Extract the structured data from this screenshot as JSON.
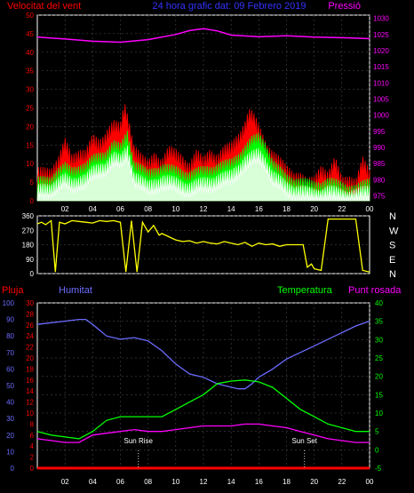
{
  "colors": {
    "background": "#000000",
    "wind_avg": "#ffffff",
    "wind_mid": "#00ff00",
    "wind_gust": "#ff0000",
    "pressure": "#ff00ff",
    "direction": "#ffff00",
    "rain": "#ff0000",
    "humidity": "#6b6bff",
    "temperature": "#00ff00",
    "dewpoint": "#ff00ff",
    "grid": "#555555",
    "axis": "#ffffff"
  },
  "chart_data": [
    {
      "type": "line",
      "title": "24 hora grafic dat: 09 Febrero 2019",
      "left_label": "Velocitat del vent",
      "right_label": "Pressió",
      "x_ticks": [
        "02",
        "04",
        "06",
        "08",
        "10",
        "12",
        "14",
        "16",
        "18",
        "20",
        "22",
        "00"
      ],
      "x_range": [
        0,
        24
      ],
      "y_left_ticks": [
        0,
        5,
        10,
        15,
        20,
        25,
        30,
        35,
        40,
        45,
        50
      ],
      "y_left_range": [
        0,
        50
      ],
      "y_right_ticks": [
        975,
        980,
        985,
        990,
        995,
        1000,
        1005,
        1010,
        1015,
        1020,
        1025,
        1030
      ],
      "y_right_range": [
        973.5,
        1031
      ],
      "pressure": {
        "x": [
          0,
          2,
          4,
          6,
          8,
          10,
          11,
          12,
          13,
          14,
          16,
          18,
          20,
          22,
          24
        ],
        "y": [
          1024.2,
          1023.6,
          1022.9,
          1022.6,
          1023.4,
          1025.0,
          1026.2,
          1026.8,
          1026.1,
          1024.8,
          1024.3,
          1024.6,
          1024.2,
          1024.0,
          1023.7
        ]
      },
      "wind_gust": {
        "x": [
          0,
          1,
          1.5,
          2,
          2.5,
          3,
          3.5,
          4,
          4.5,
          5,
          5.5,
          6,
          6.3,
          6.6,
          7,
          7.5,
          8,
          8.5,
          9,
          9.5,
          10,
          10.5,
          11,
          11.5,
          12,
          12.5,
          13,
          13.5,
          14,
          14.5,
          15,
          15.3,
          15.6,
          16,
          16.5,
          17,
          17.5,
          18,
          18.5,
          19,
          19.5,
          20,
          20.5,
          21,
          21.5,
          22,
          22.5,
          23,
          23.5,
          24
        ],
        "y": [
          6,
          7,
          9,
          14,
          10,
          12,
          11,
          15,
          14,
          17,
          19,
          18,
          24,
          20,
          13,
          10,
          8,
          11,
          9,
          12,
          11,
          10,
          8,
          11,
          9,
          12,
          10,
          12,
          13,
          16,
          19,
          22,
          21,
          18,
          14,
          11,
          9,
          7,
          6,
          5,
          3,
          4,
          8,
          5,
          9,
          4,
          5,
          3,
          9,
          6
        ]
      },
      "wind_mid": {
        "x": [
          0,
          1,
          2,
          2.5,
          3,
          3.5,
          4,
          4.5,
          5,
          5.5,
          6,
          6.5,
          7,
          8,
          9,
          10,
          11,
          12,
          13,
          14,
          14.5,
          15,
          15.5,
          16,
          16.5,
          17,
          18,
          19,
          20,
          21,
          22,
          23,
          24
        ],
        "y": [
          4,
          5,
          8,
          7,
          8,
          8,
          10,
          11,
          12,
          14,
          13,
          17,
          9,
          6,
          8,
          7,
          6,
          7,
          8,
          9,
          11,
          13,
          15,
          16,
          14,
          9,
          5,
          4,
          3,
          4,
          3,
          2,
          4
        ]
      },
      "wind_avg": {
        "x": [
          0,
          1,
          2,
          2.5,
          3,
          3.5,
          4,
          4.5,
          5,
          5.5,
          6,
          6.5,
          7,
          8,
          9,
          10,
          11,
          12,
          13,
          14,
          14.5,
          15,
          15.5,
          16,
          16.5,
          17,
          18,
          19,
          20,
          21,
          22,
          23,
          24
        ],
        "y": [
          2,
          3,
          5,
          4,
          5,
          5,
          7,
          8,
          9,
          11,
          10,
          13,
          6,
          3,
          5,
          4,
          3,
          4,
          5,
          6,
          8,
          10,
          11,
          12,
          10,
          6,
          3,
          2,
          1,
          2,
          1,
          1,
          2
        ]
      }
    },
    {
      "type": "line",
      "y_ticks": [
        0,
        90,
        180,
        270,
        360
      ],
      "y_range": [
        0,
        360
      ],
      "right_labels": [
        "N",
        "W",
        "S",
        "E",
        "N"
      ],
      "x_range": [
        0,
        24
      ],
      "direction": {
        "x": [
          0,
          0.3,
          0.6,
          1,
          1.3,
          1.6,
          2,
          2.5,
          3,
          3.5,
          4,
          4.5,
          5,
          5.5,
          6,
          6.4,
          6.8,
          7.2,
          7.6,
          8,
          8.4,
          8.8,
          9,
          9.5,
          10,
          10.5,
          11,
          11.5,
          12,
          12.5,
          13,
          13.5,
          14,
          14.5,
          15,
          15.5,
          16,
          16.5,
          17,
          17.5,
          18,
          18.5,
          19,
          19.2,
          19.5,
          19.8,
          20,
          20.5,
          21,
          21.5,
          22,
          22.5,
          23,
          23.5,
          24
        ],
        "y": [
          310,
          320,
          305,
          330,
          10,
          320,
          310,
          330,
          325,
          320,
          315,
          330,
          325,
          330,
          320,
          10,
          330,
          10,
          320,
          260,
          300,
          240,
          250,
          230,
          210,
          200,
          205,
          190,
          200,
          190,
          185,
          200,
          190,
          180,
          195,
          170,
          190,
          180,
          185,
          170,
          180,
          180,
          180,
          180,
          40,
          60,
          30,
          20,
          340,
          340,
          340,
          340,
          340,
          20,
          10
        ]
      }
    },
    {
      "type": "line",
      "left_label": "Pluja",
      "left2_label": "Humitat",
      "right_label": "Temperatura",
      "right2_label": "Punt rosada",
      "annotations": [
        "Sun Rise",
        "Sun Set"
      ],
      "sun_rise_x": 7.3,
      "sun_set_x": 19.3,
      "x_ticks": [
        "02",
        "04",
        "06",
        "08",
        "10",
        "12",
        "14",
        "16",
        "18",
        "20",
        "22",
        "00"
      ],
      "x_range": [
        0,
        24
      ],
      "humidity_ticks": [
        0,
        10,
        20,
        30,
        40,
        50,
        60,
        70,
        80,
        90,
        100
      ],
      "humidity_range": [
        0,
        100
      ],
      "rain_ticks": [
        0,
        2,
        4,
        6,
        8,
        10,
        12,
        14,
        16,
        18,
        20,
        22,
        24,
        26,
        28,
        30
      ],
      "rain_range": [
        0,
        30
      ],
      "temp_ticks": [
        -5,
        0,
        5,
        10,
        15,
        20,
        25,
        30,
        35,
        40
      ],
      "temp_range": [
        -5,
        40
      ],
      "humidity": {
        "x": [
          0,
          1,
          2,
          3,
          3.5,
          4,
          5,
          6,
          7,
          8,
          9,
          10,
          11,
          12,
          13,
          14,
          14.5,
          15,
          15.5,
          16,
          17,
          18,
          19,
          20,
          21,
          22,
          23,
          24
        ],
        "y": [
          87,
          88,
          89,
          90,
          90,
          87,
          80,
          78,
          79,
          77,
          71,
          63,
          57,
          55,
          51,
          49,
          48,
          48,
          51,
          55,
          60,
          66,
          70,
          74,
          78,
          82,
          86,
          89
        ]
      },
      "temperature": {
        "x": [
          0,
          1,
          2,
          3,
          4,
          5,
          6,
          7,
          8,
          9,
          10,
          11,
          12,
          13,
          14,
          15,
          16,
          17,
          18,
          19,
          20,
          21,
          22,
          23,
          24
        ],
        "y": [
          5,
          4,
          3.5,
          3,
          5,
          8,
          9,
          9,
          9,
          9,
          11,
          13,
          15,
          18,
          18.7,
          19,
          18.5,
          17,
          14,
          11,
          9,
          7,
          6,
          5,
          5
        ]
      },
      "dewpoint": {
        "x": [
          0,
          1,
          2,
          3,
          4,
          5,
          6,
          7,
          8,
          9,
          10,
          11,
          12,
          13,
          14,
          15,
          16,
          17,
          18,
          19,
          20,
          21,
          22,
          23,
          24
        ],
        "y": [
          3,
          2.5,
          2,
          2,
          4,
          4.5,
          5,
          5.5,
          5,
          5,
          5.5,
          6,
          6.5,
          6.5,
          6.5,
          7,
          7,
          6.5,
          6,
          5,
          4,
          3,
          2.5,
          2,
          2
        ]
      },
      "rain": {
        "x": [
          0,
          24
        ],
        "y": [
          0,
          0
        ]
      }
    }
  ]
}
